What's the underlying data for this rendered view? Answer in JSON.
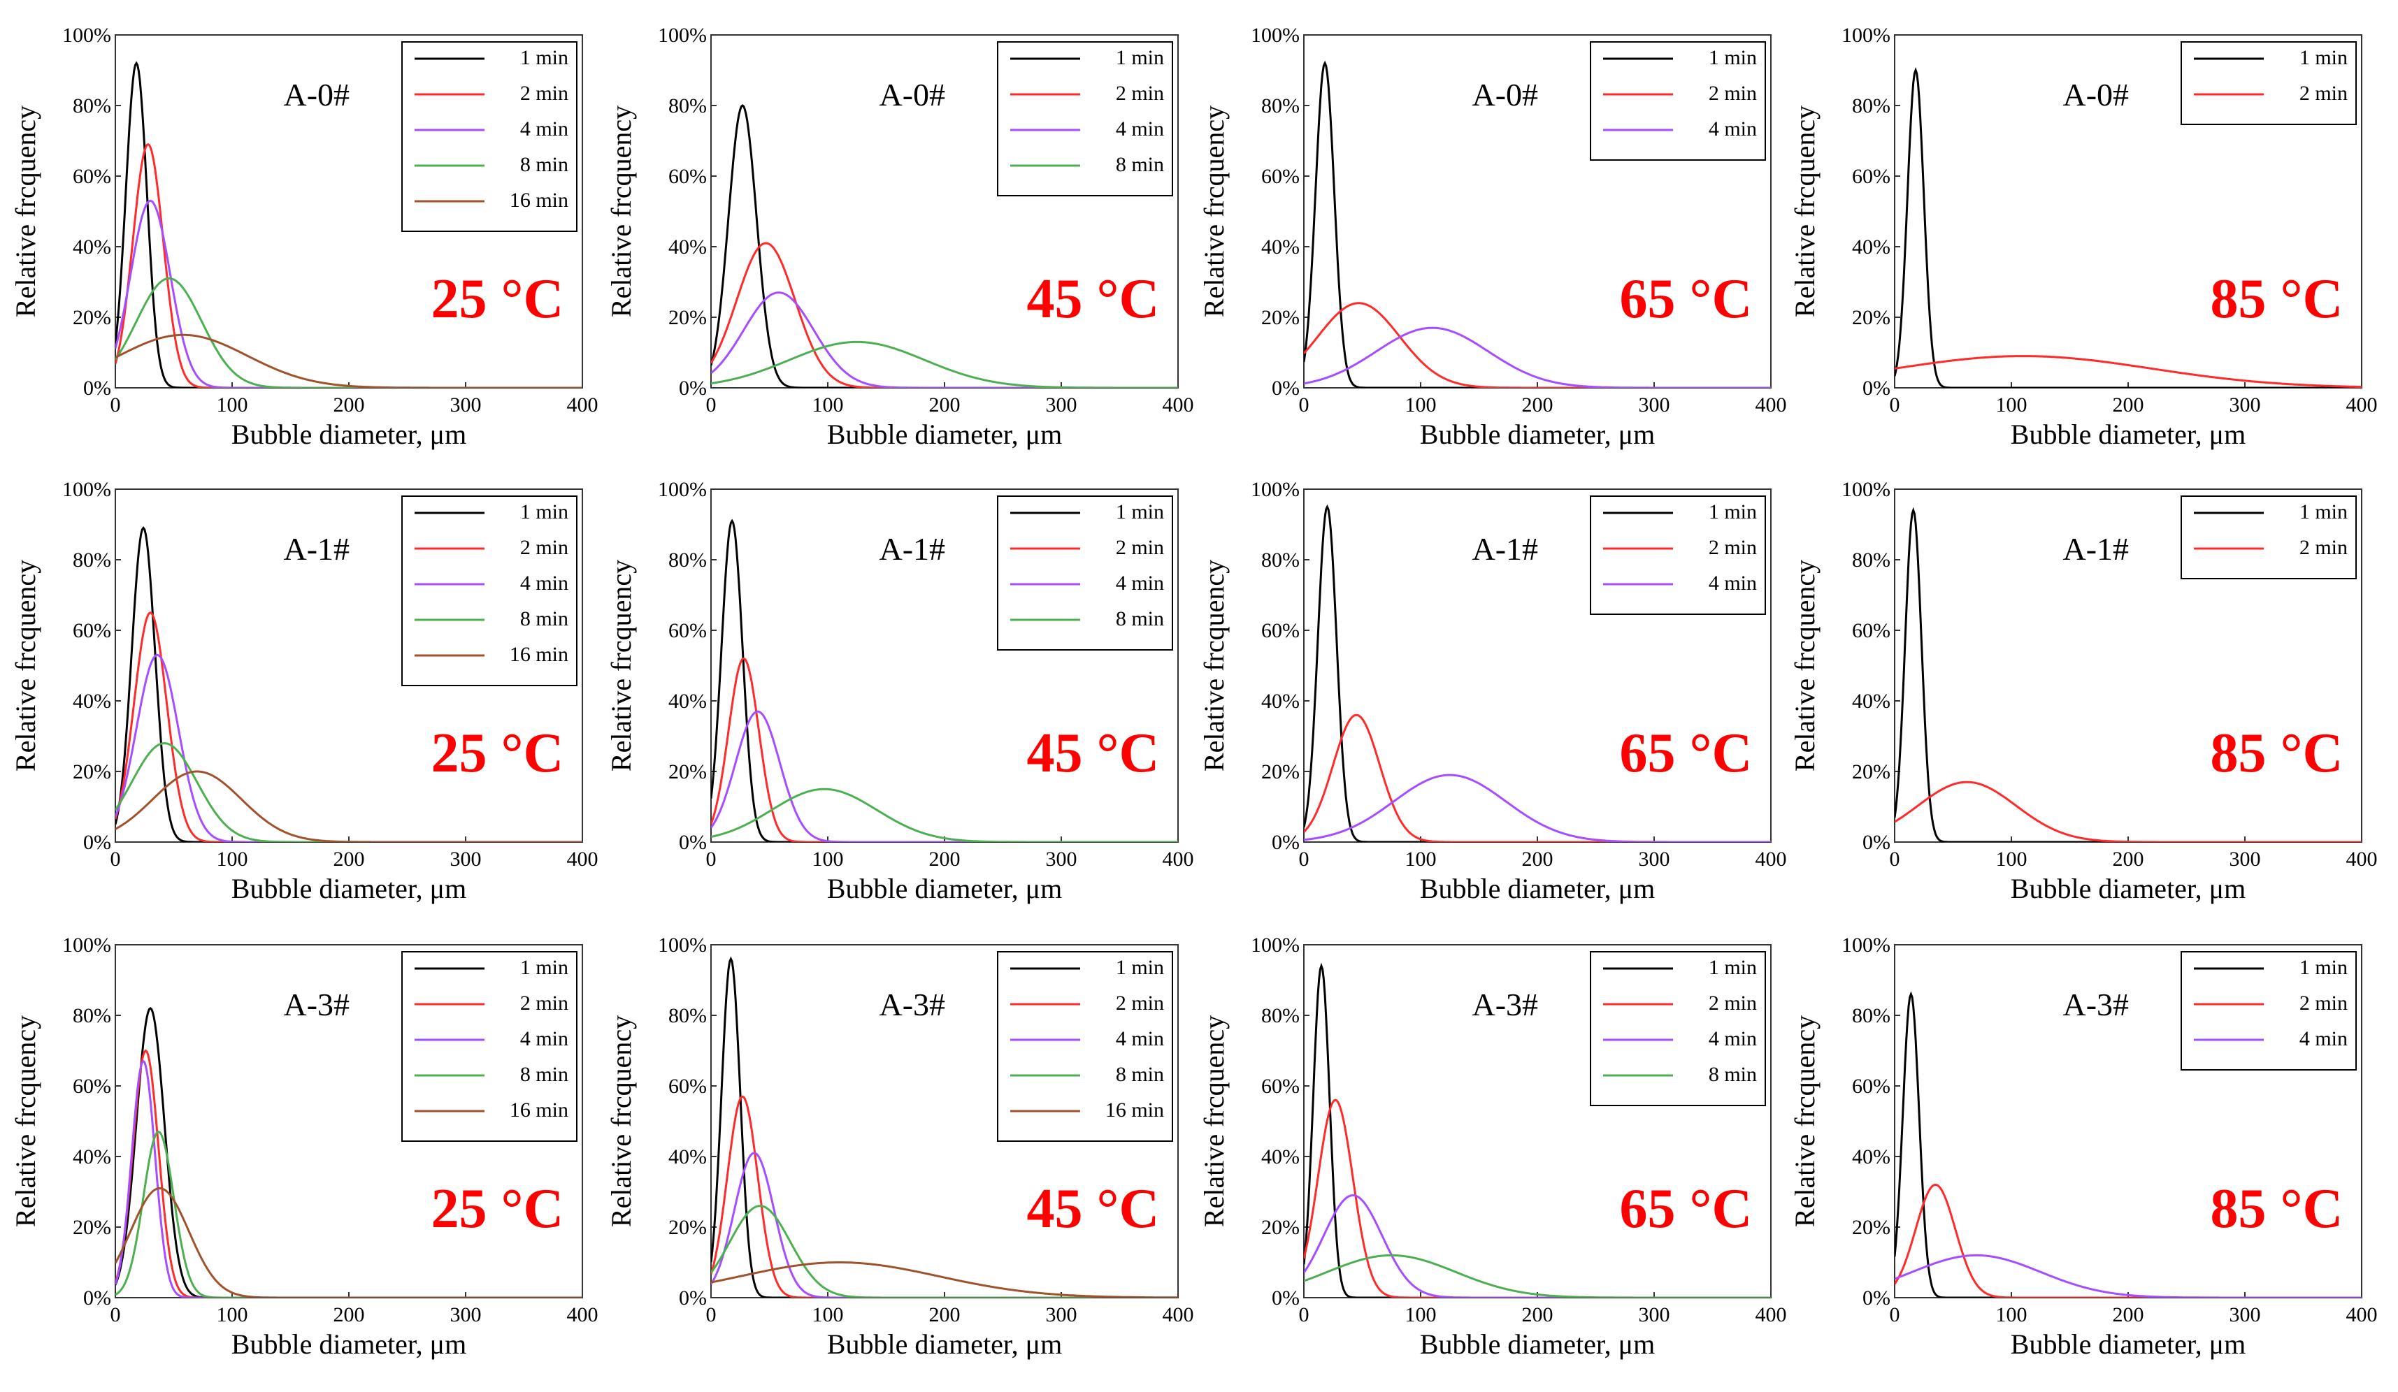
{
  "colors": {
    "1 min": "#000000",
    "2 min": "#ff2a2a",
    "4 min": "#a64dff",
    "8 min": "#4caf50",
    "16 min": "#a0522d",
    "temp": "#ff0000"
  },
  "axes": {
    "xlabel": "Bubble diameter, μm",
    "ylabel": "Relative frcquency",
    "xticks": [
      "0",
      "100",
      "200",
      "300",
      "400"
    ],
    "yticks": [
      "0%",
      "20%",
      "40%",
      "60%",
      "80%",
      "100%"
    ]
  },
  "chart_data": [
    {
      "type": "line",
      "sample": "A-0#",
      "temperature": "25 °C",
      "xlim": [
        0,
        400
      ],
      "ylim": [
        0,
        100
      ],
      "series": [
        {
          "name": "1 min",
          "peak_x": 18,
          "peak_y": 92,
          "sigma": 9
        },
        {
          "name": "2 min",
          "peak_x": 28,
          "peak_y": 69,
          "sigma": 13
        },
        {
          "name": "4 min",
          "peak_x": 30,
          "peak_y": 53,
          "sigma": 17
        },
        {
          "name": "8 min",
          "peak_x": 46,
          "peak_y": 31,
          "sigma": 28
        },
        {
          "name": "16 min",
          "peak_x": 58,
          "peak_y": 15,
          "sigma": 55
        }
      ]
    },
    {
      "type": "line",
      "sample": "A-0#",
      "temperature": "45 °C",
      "xlim": [
        0,
        400
      ],
      "ylim": [
        0,
        100
      ],
      "series": [
        {
          "name": "1 min",
          "peak_x": 27,
          "peak_y": 80,
          "sigma": 12
        },
        {
          "name": "2 min",
          "peak_x": 47,
          "peak_y": 41,
          "sigma": 25
        },
        {
          "name": "4 min",
          "peak_x": 58,
          "peak_y": 27,
          "sigma": 30
        },
        {
          "name": "8 min",
          "peak_x": 125,
          "peak_y": 13,
          "sigma": 58
        }
      ]
    },
    {
      "type": "line",
      "sample": "A-0#",
      "temperature": "65 °C",
      "xlim": [
        0,
        400
      ],
      "ylim": [
        0,
        100
      ],
      "series": [
        {
          "name": "1 min",
          "peak_x": 18,
          "peak_y": 92,
          "sigma": 8
        },
        {
          "name": "2 min",
          "peak_x": 47,
          "peak_y": 24,
          "sigma": 35
        },
        {
          "name": "4 min",
          "peak_x": 110,
          "peak_y": 17,
          "sigma": 48
        }
      ]
    },
    {
      "type": "line",
      "sample": "A-0#",
      "temperature": "85 °C",
      "xlim": [
        0,
        400
      ],
      "ylim": [
        0,
        100
      ],
      "series": [
        {
          "name": "1 min",
          "peak_x": 18,
          "peak_y": 90,
          "sigma": 7
        },
        {
          "name": "2 min",
          "peak_x": 110,
          "peak_y": 9,
          "sigma": 110
        }
      ]
    },
    {
      "type": "line",
      "sample": "A-1#",
      "temperature": "25 °C",
      "xlim": [
        0,
        400
      ],
      "ylim": [
        0,
        100
      ],
      "series": [
        {
          "name": "1 min",
          "peak_x": 24,
          "peak_y": 89,
          "sigma": 10
        },
        {
          "name": "2 min",
          "peak_x": 30,
          "peak_y": 65,
          "sigma": 14
        },
        {
          "name": "4 min",
          "peak_x": 36,
          "peak_y": 53,
          "sigma": 18
        },
        {
          "name": "8 min",
          "peak_x": 42,
          "peak_y": 28,
          "sigma": 28
        },
        {
          "name": "16 min",
          "peak_x": 70,
          "peak_y": 20,
          "sigma": 38
        }
      ]
    },
    {
      "type": "line",
      "sample": "A-1#",
      "temperature": "45 °C",
      "xlim": [
        0,
        400
      ],
      "ylim": [
        0,
        100
      ],
      "series": [
        {
          "name": "1 min",
          "peak_x": 18,
          "peak_y": 91,
          "sigma": 9
        },
        {
          "name": "2 min",
          "peak_x": 28,
          "peak_y": 52,
          "sigma": 13
        },
        {
          "name": "4 min",
          "peak_x": 40,
          "peak_y": 37,
          "sigma": 19
        },
        {
          "name": "8 min",
          "peak_x": 97,
          "peak_y": 15,
          "sigma": 45
        }
      ]
    },
    {
      "type": "line",
      "sample": "A-1#",
      "temperature": "65 °C",
      "xlim": [
        0,
        400
      ],
      "ylim": [
        0,
        100
      ],
      "series": [
        {
          "name": "1 min",
          "peak_x": 20,
          "peak_y": 95,
          "sigma": 8
        },
        {
          "name": "2 min",
          "peak_x": 45,
          "peak_y": 36,
          "sigma": 20
        },
        {
          "name": "4 min",
          "peak_x": 125,
          "peak_y": 19,
          "sigma": 48
        }
      ]
    },
    {
      "type": "line",
      "sample": "A-1#",
      "temperature": "85 °C",
      "xlim": [
        0,
        400
      ],
      "ylim": [
        0,
        100
      ],
      "series": [
        {
          "name": "1 min",
          "peak_x": 16,
          "peak_y": 94,
          "sigma": 7
        },
        {
          "name": "2 min",
          "peak_x": 62,
          "peak_y": 17,
          "sigma": 42
        }
      ]
    },
    {
      "type": "line",
      "sample": "A-3#",
      "temperature": "25 °C",
      "xlim": [
        0,
        400
      ],
      "ylim": [
        0,
        100
      ],
      "series": [
        {
          "name": "1 min",
          "peak_x": 30,
          "peak_y": 82,
          "sigma": 12
        },
        {
          "name": "2 min",
          "peak_x": 26,
          "peak_y": 70,
          "sigma": 11
        },
        {
          "name": "4 min",
          "peak_x": 24,
          "peak_y": 67,
          "sigma": 10
        },
        {
          "name": "8 min",
          "peak_x": 37,
          "peak_y": 47,
          "sigma": 13
        },
        {
          "name": "16 min",
          "peak_x": 38,
          "peak_y": 31,
          "sigma": 25
        }
      ]
    },
    {
      "type": "line",
      "sample": "A-3#",
      "temperature": "45 °C",
      "xlim": [
        0,
        400
      ],
      "ylim": [
        0,
        100
      ],
      "series": [
        {
          "name": "1 min",
          "peak_x": 17,
          "peak_y": 96,
          "sigma": 8
        },
        {
          "name": "2 min",
          "peak_x": 27,
          "peak_y": 57,
          "sigma": 13
        },
        {
          "name": "4 min",
          "peak_x": 37,
          "peak_y": 41,
          "sigma": 17
        },
        {
          "name": "8 min",
          "peak_x": 42,
          "peak_y": 26,
          "sigma": 26
        },
        {
          "name": "16 min",
          "peak_x": 110,
          "peak_y": 10,
          "sigma": 85
        }
      ]
    },
    {
      "type": "line",
      "sample": "A-3#",
      "temperature": "65 °C",
      "xlim": [
        0,
        400
      ],
      "ylim": [
        0,
        100
      ],
      "series": [
        {
          "name": "1 min",
          "peak_x": 15,
          "peak_y": 94,
          "sigma": 7
        },
        {
          "name": "2 min",
          "peak_x": 27,
          "peak_y": 56,
          "sigma": 15
        },
        {
          "name": "4 min",
          "peak_x": 42,
          "peak_y": 29,
          "sigma": 25
        },
        {
          "name": "8 min",
          "peak_x": 75,
          "peak_y": 12,
          "sigma": 55
        }
      ]
    },
    {
      "type": "line",
      "sample": "A-3#",
      "temperature": "85 °C",
      "xlim": [
        0,
        400
      ],
      "ylim": [
        0,
        100
      ],
      "series": [
        {
          "name": "1 min",
          "peak_x": 14,
          "peak_y": 86,
          "sigma": 7
        },
        {
          "name": "2 min",
          "peak_x": 35,
          "peak_y": 32,
          "sigma": 17
        },
        {
          "name": "4 min",
          "peak_x": 70,
          "peak_y": 12,
          "sigma": 55
        }
      ]
    }
  ]
}
